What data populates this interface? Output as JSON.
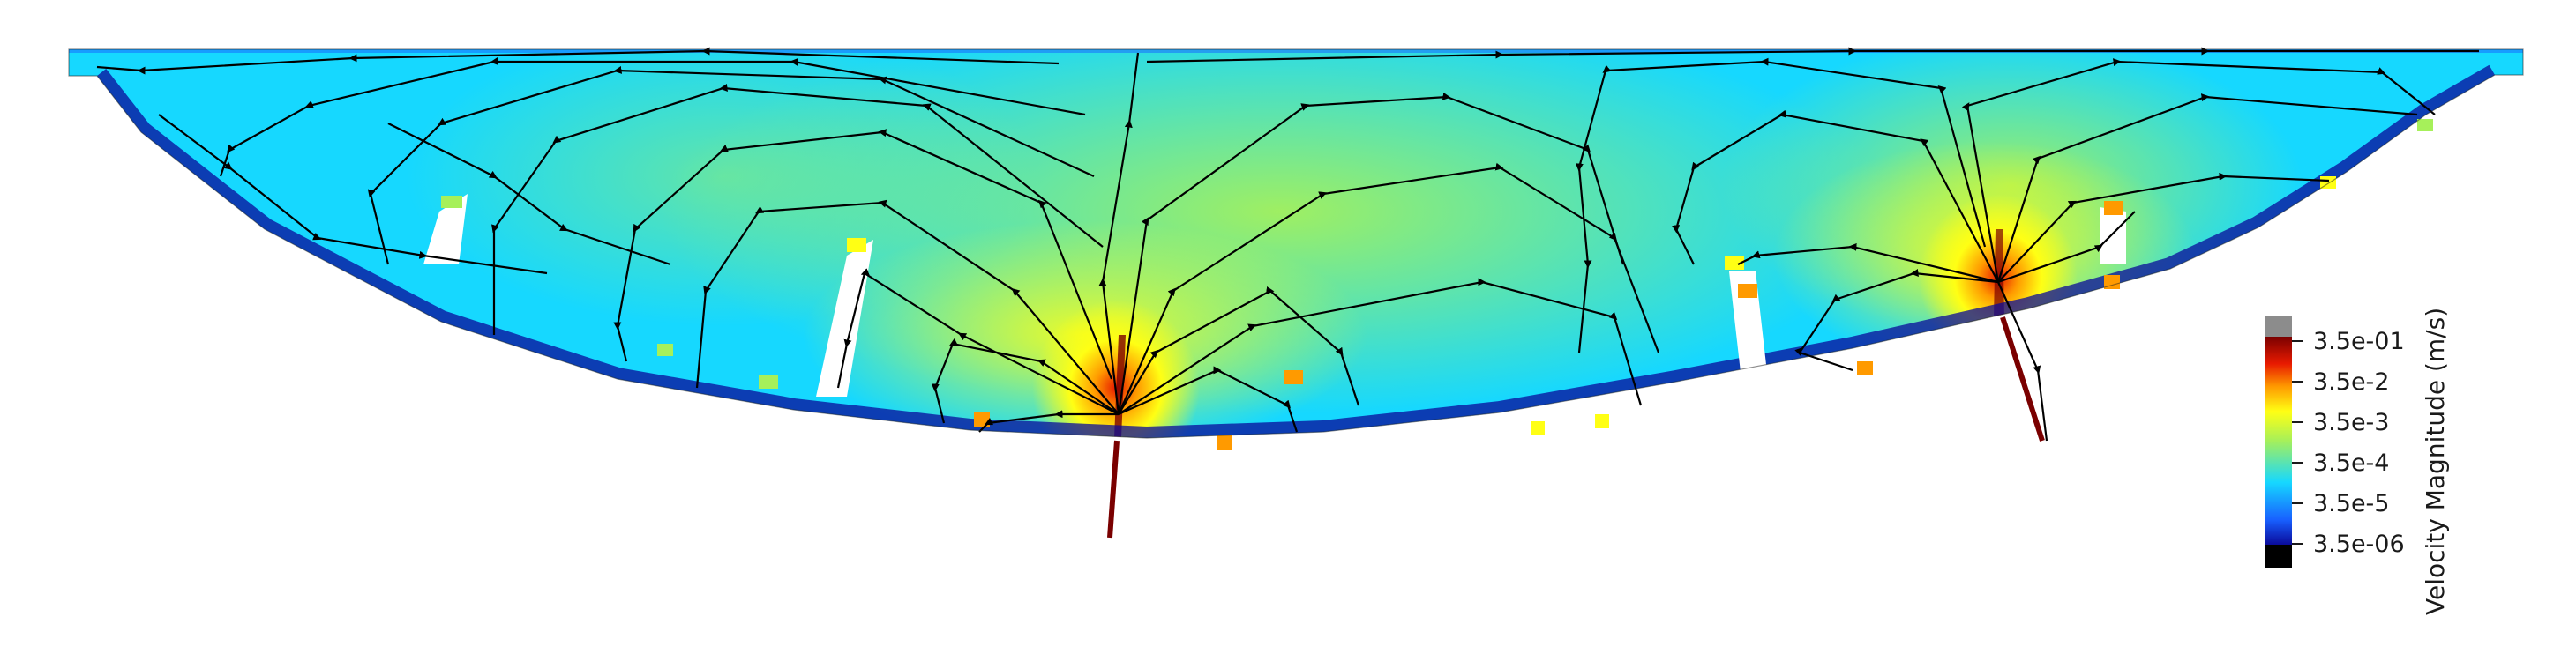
{
  "figure": {
    "subject": "velocity streamlines",
    "colorbar": {
      "title": "Velocity Magnitude (m/s)",
      "ticks": [
        "3.5e-01",
        "3.5e-2",
        "3.5e-3",
        "3.5e-4",
        "3.5e-5",
        "3.5e-06"
      ],
      "colors": {
        "over": "#8c8c8c",
        "top": "#7a0000",
        "red": "#e81a00",
        "orange": "#ff9a00",
        "yellow": "#ffff14",
        "green": "#a6f05a",
        "cyan": "#16d8ff",
        "blue": "#1860ff",
        "darkblue": "#0a0a9a",
        "under": "#000000"
      }
    }
  }
}
